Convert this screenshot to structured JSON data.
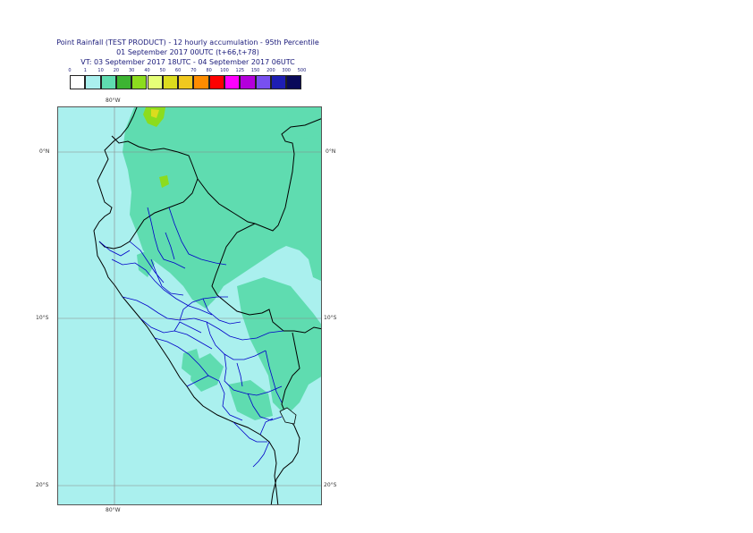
{
  "title": {
    "line1": "Point Rainfall (TEST PRODUCT) - 12 hourly accumulation - 95th Percentile",
    "line2": "01 September 2017 00UTC (t+66,t+78)",
    "line3": "VT: 03 September 2017 18UTC - 04 September 2017 06UTC"
  },
  "legend": {
    "labels": [
      "0",
      "1",
      "10",
      "20",
      "30",
      "40",
      "50",
      "60",
      "70",
      "80",
      "100",
      "125",
      "150",
      "200",
      "300",
      "500"
    ],
    "colors": [
      "#ffffff",
      "#aaf0ee",
      "#5fdcb0",
      "#3cb432",
      "#8cdc1e",
      "#e6ff78",
      "#dcdc1e",
      "#f0c81e",
      "#ff8c00",
      "#ff0000",
      "#ff00ff",
      "#b400dc",
      "#7850f0",
      "#1e1eb4",
      "#0a0a5a"
    ]
  },
  "map": {
    "lon_labels": [
      "80°W",
      "80°W"
    ],
    "lat_labels": [
      "0°N",
      "0°N",
      "10°S",
      "10°S",
      "20°S",
      "20°S"
    ],
    "colors": {
      "sea": "#aaf0ee",
      "wet": "#5fdcb0",
      "heavy": "#8cdc1e",
      "extreme": "#dcdc1e",
      "country_border": "#000000",
      "coastline": "#000000",
      "region_border": "#0000c8",
      "grid": "#888888"
    }
  }
}
